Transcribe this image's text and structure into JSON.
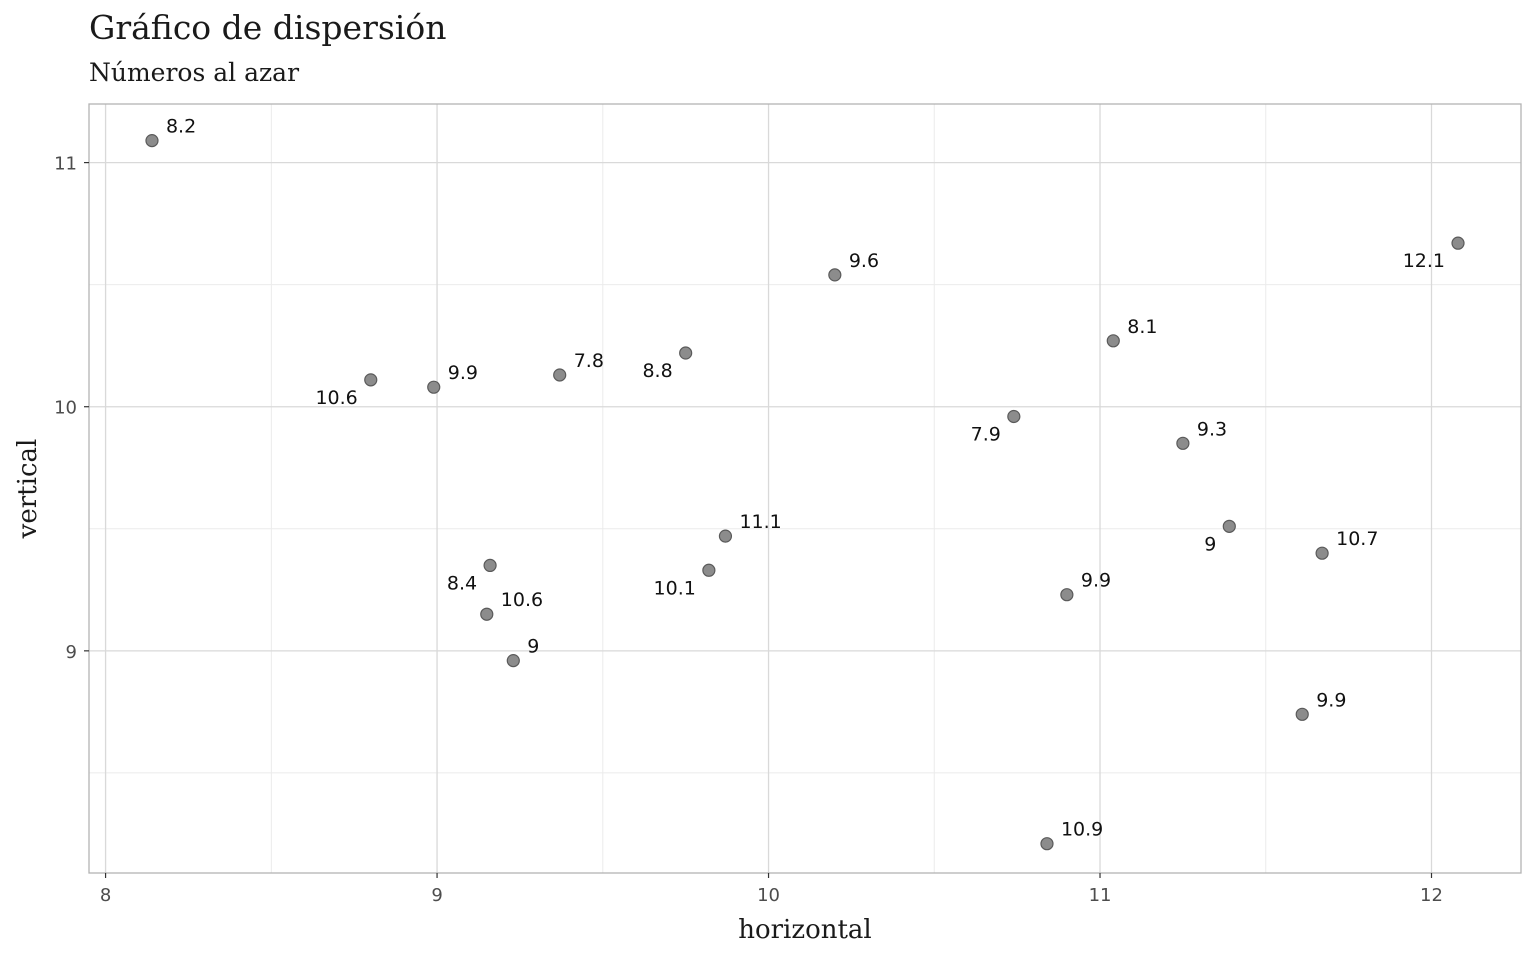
{
  "colors": {
    "point_fill": "#8c8c8c",
    "point_stroke": "#5a5a5a",
    "grid_major": "#d9d9d9",
    "grid_minor": "#ebebeb",
    "panel_border": "#b3b3b3",
    "text": "#1a1a1a"
  },
  "chart_data": {
    "type": "scatter",
    "title": "Gráfico de dispersión",
    "subtitle": "Números al azar",
    "xlabel": "horizontal",
    "ylabel": "vertical",
    "xlim": [
      7.95,
      12.27
    ],
    "ylim": [
      8.09,
      11.24
    ],
    "x_ticks": [
      8,
      9,
      10,
      11,
      12
    ],
    "y_ticks": [
      9,
      10,
      11
    ],
    "grid": true,
    "legend": "none",
    "points": [
      {
        "x": 8.14,
        "y": 11.09,
        "label": "8.2",
        "label_pos": "right"
      },
      {
        "x": 8.8,
        "y": 10.11,
        "label": "10.6",
        "label_pos": "left"
      },
      {
        "x": 8.99,
        "y": 10.08,
        "label": "9.9",
        "label_pos": "right"
      },
      {
        "x": 9.37,
        "y": 10.13,
        "label": "7.8",
        "label_pos": "right"
      },
      {
        "x": 9.75,
        "y": 10.22,
        "label": "8.8",
        "label_pos": "left"
      },
      {
        "x": 10.2,
        "y": 10.54,
        "label": "9.6",
        "label_pos": "right"
      },
      {
        "x": 9.16,
        "y": 9.35,
        "label": "8.4",
        "label_pos": "left"
      },
      {
        "x": 9.15,
        "y": 9.15,
        "label": "10.6",
        "label_pos": "right"
      },
      {
        "x": 9.23,
        "y": 8.96,
        "label": "9",
        "label_pos": "right"
      },
      {
        "x": 9.87,
        "y": 9.47,
        "label": "11.1",
        "label_pos": "right"
      },
      {
        "x": 9.82,
        "y": 9.33,
        "label": "10.1",
        "label_pos": "left"
      },
      {
        "x": 10.74,
        "y": 9.96,
        "label": "7.9",
        "label_pos": "left"
      },
      {
        "x": 11.04,
        "y": 10.27,
        "label": "8.1",
        "label_pos": "right"
      },
      {
        "x": 11.25,
        "y": 9.85,
        "label": "9.3",
        "label_pos": "right"
      },
      {
        "x": 11.39,
        "y": 9.51,
        "label": "9",
        "label_pos": "left"
      },
      {
        "x": 10.9,
        "y": 9.23,
        "label": "9.9",
        "label_pos": "right"
      },
      {
        "x": 11.67,
        "y": 9.4,
        "label": "10.7",
        "label_pos": "right"
      },
      {
        "x": 11.61,
        "y": 8.74,
        "label": "9.9",
        "label_pos": "right"
      },
      {
        "x": 10.84,
        "y": 8.21,
        "label": "10.9",
        "label_pos": "right"
      },
      {
        "x": 12.08,
        "y": 10.67,
        "label": "12.1",
        "label_pos": "left"
      }
    ]
  }
}
